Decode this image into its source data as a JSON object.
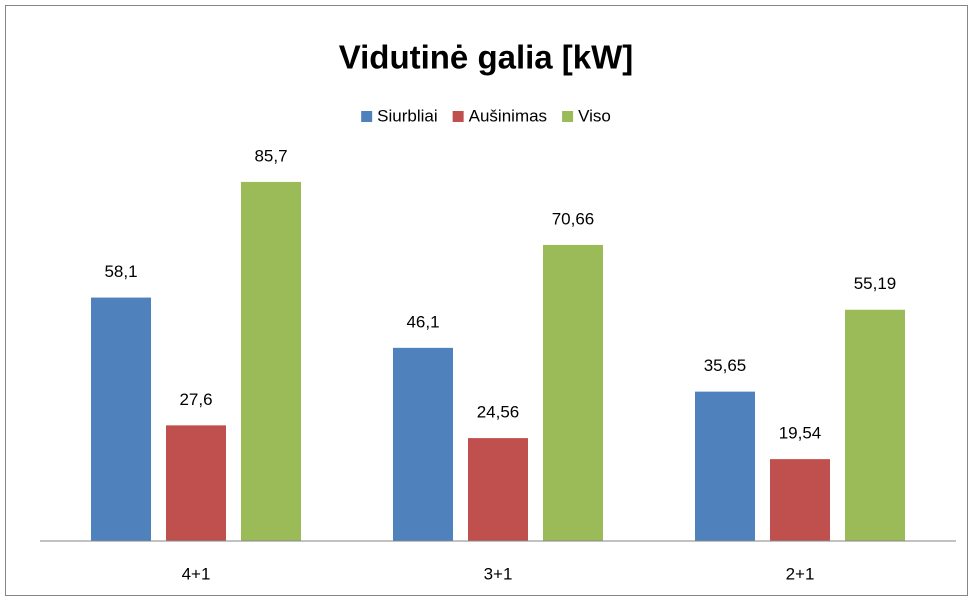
{
  "chart_data": {
    "type": "bar",
    "title": "Vidutinė galia [kW]",
    "categories": [
      "4+1",
      "3+1",
      "2+1"
    ],
    "series": [
      {
        "name": "Siurbliai",
        "color": "#4f81bd",
        "values": [
          58.1,
          46.1,
          35.65
        ],
        "value_labels": [
          "58,1",
          "46,1",
          "35,65"
        ]
      },
      {
        "name": "Aušinimas",
        "color": "#c0504d",
        "values": [
          27.6,
          24.56,
          19.54
        ],
        "value_labels": [
          "27,6",
          "24,56",
          "19,54"
        ]
      },
      {
        "name": "Viso",
        "color": "#9bbb59",
        "values": [
          85.7,
          70.66,
          55.19
        ],
        "value_labels": [
          "85,7",
          "70,66",
          "55,19"
        ]
      }
    ],
    "ylim": [
      0,
      100
    ],
    "legend": "top"
  }
}
